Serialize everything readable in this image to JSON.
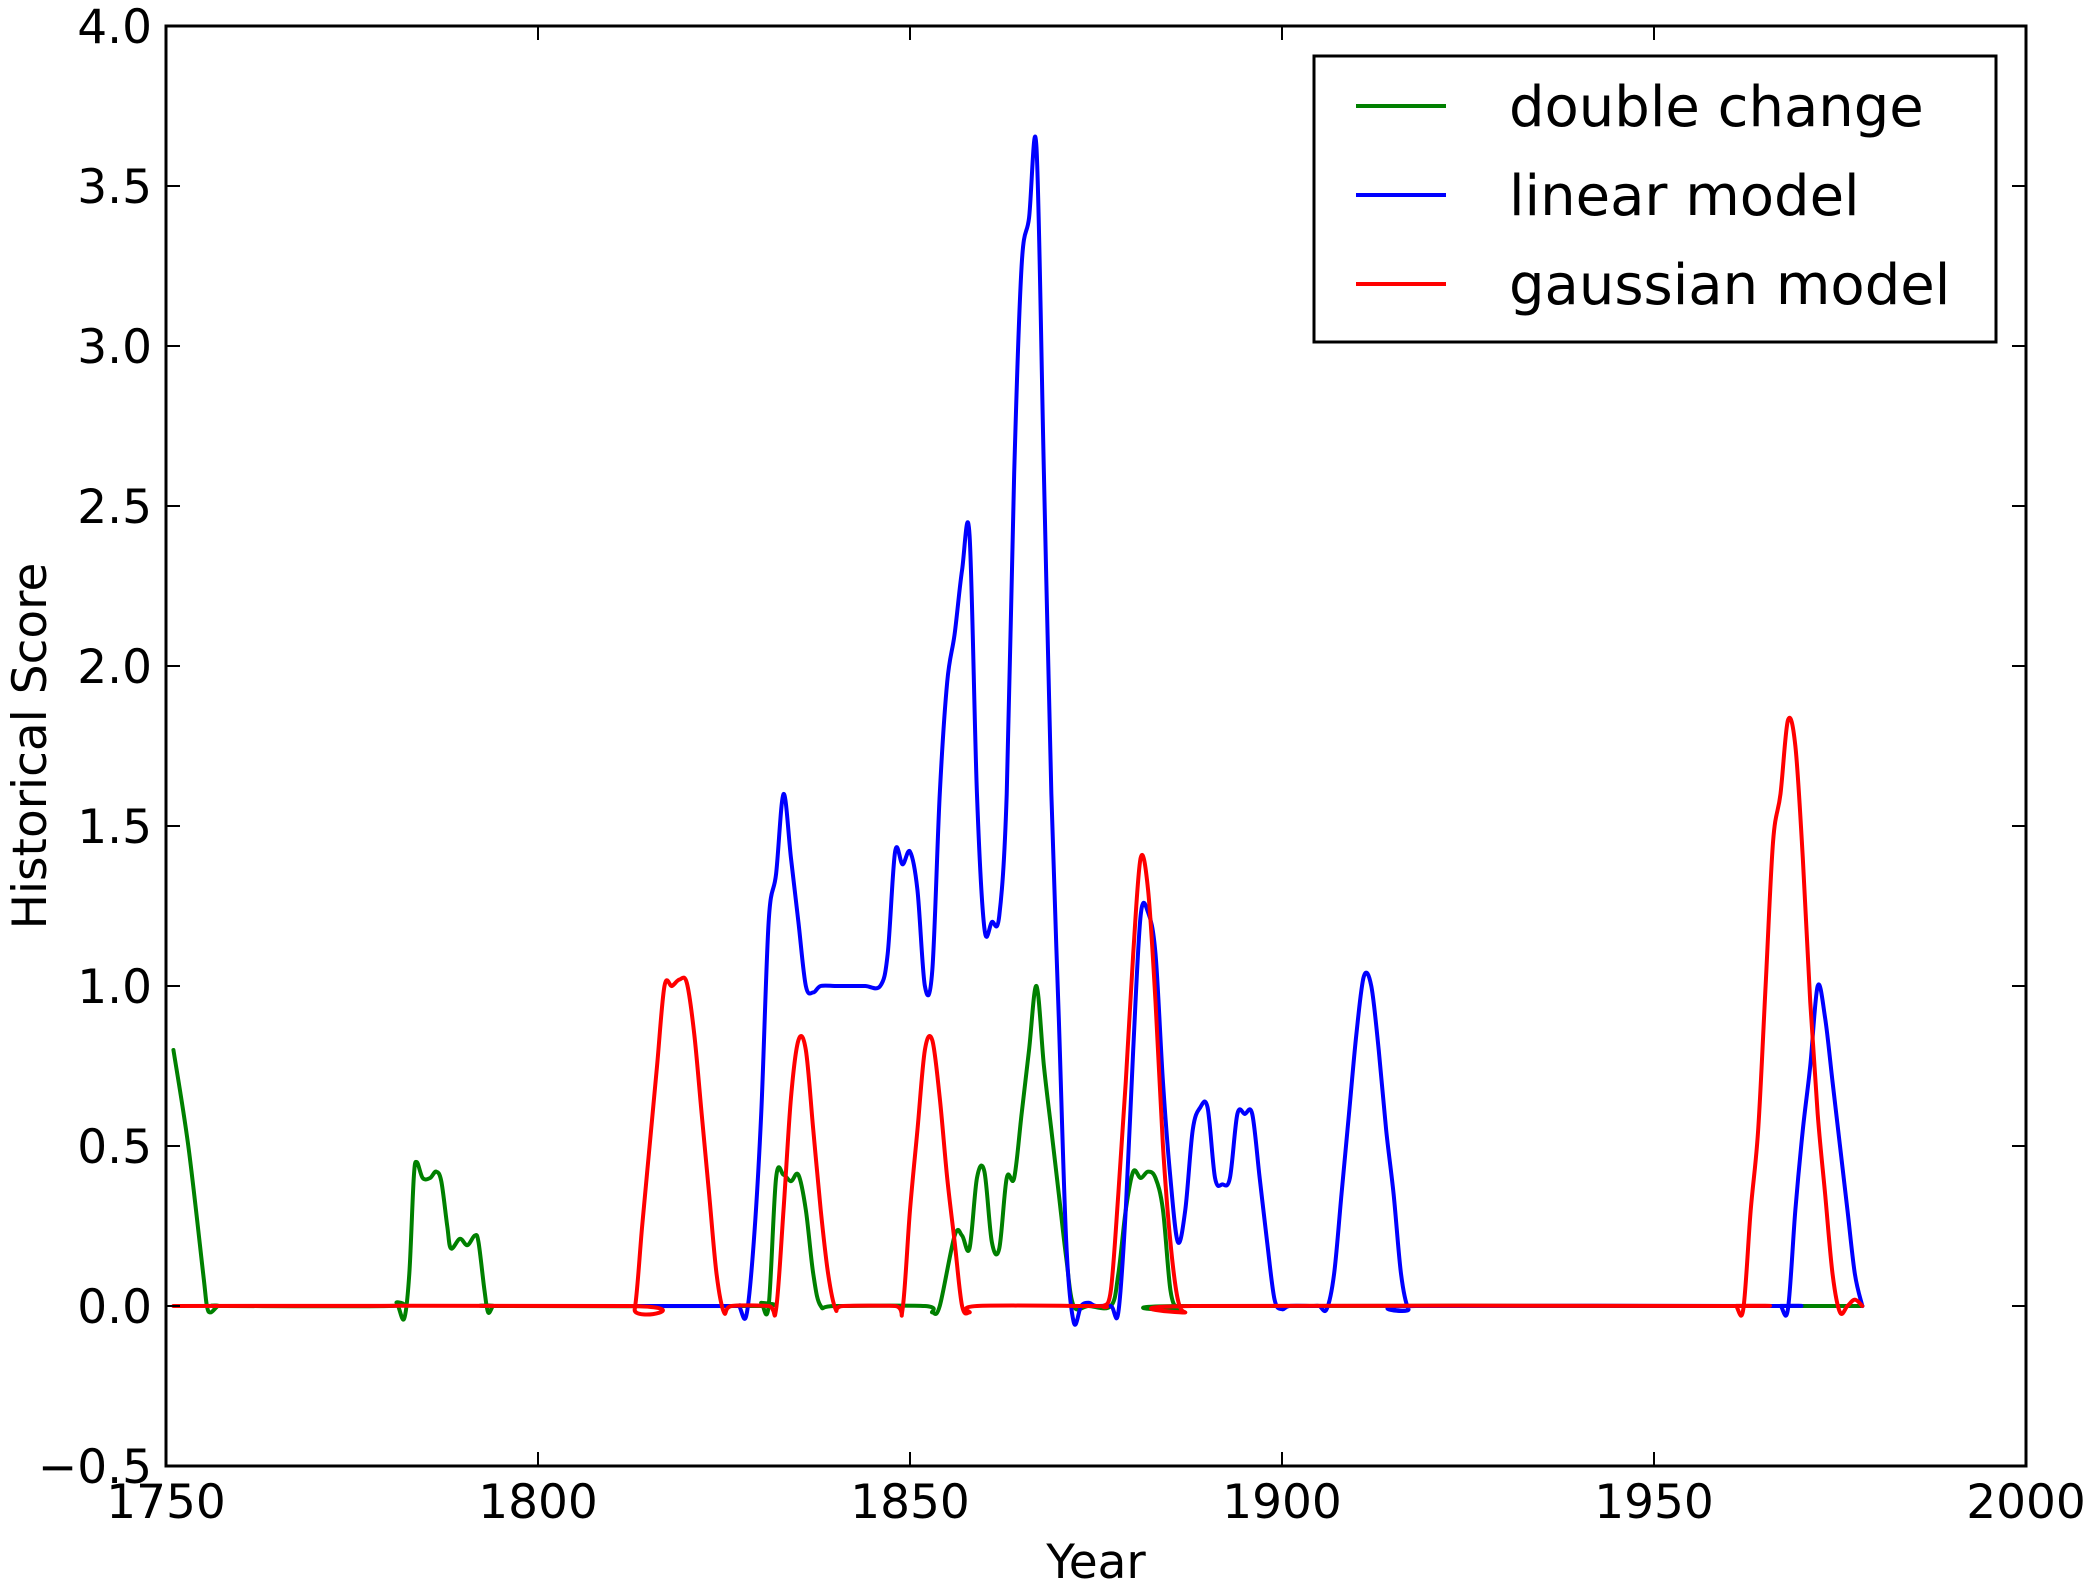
{
  "chart_data": {
    "type": "line",
    "title": "",
    "xlabel": "Year",
    "ylabel": "Historical Score",
    "xlim": [
      1750,
      2000
    ],
    "ylim": [
      -0.5,
      4.0
    ],
    "xticks": [
      1750,
      1800,
      1850,
      1900,
      1950,
      2000
    ],
    "yticks": [
      -0.5,
      0.0,
      0.5,
      1.0,
      1.5,
      2.0,
      2.5,
      3.0,
      3.5,
      4.0
    ],
    "xtick_labels": [
      "1750",
      "1800",
      "1850",
      "1900",
      "1950",
      "2000"
    ],
    "ytick_labels": [
      "−0.5",
      "0.0",
      "0.5",
      "1.0",
      "1.5",
      "2.0",
      "2.5",
      "3.0",
      "3.5",
      "4.0"
    ],
    "grid": false,
    "legend_position": "top-right",
    "series": [
      {
        "name": "double change",
        "color": "#008000",
        "points": [
          [
            1751,
            0.8
          ],
          [
            1753,
            0.5
          ],
          [
            1755,
            0.1
          ],
          [
            1755.5,
            0.0
          ],
          [
            1756,
            -0.02
          ],
          [
            1757,
            0.0
          ],
          [
            1758,
            0.0
          ],
          [
            1780,
            0.0
          ],
          [
            1781,
            0.01
          ],
          [
            1782,
            -0.04
          ],
          [
            1782.7,
            0.1
          ],
          [
            1783.3,
            0.4
          ],
          [
            1783.7,
            0.45
          ],
          [
            1784.5,
            0.4
          ],
          [
            1785.5,
            0.4
          ],
          [
            1786.3,
            0.42
          ],
          [
            1787,
            0.39
          ],
          [
            1787.8,
            0.25
          ],
          [
            1788.3,
            0.18
          ],
          [
            1789.5,
            0.21
          ],
          [
            1790.5,
            0.19
          ],
          [
            1791.5,
            0.22
          ],
          [
            1792,
            0.2
          ],
          [
            1792.8,
            0.05
          ],
          [
            1793.3,
            -0.02
          ],
          [
            1794,
            0.0
          ],
          [
            1795,
            0.0
          ],
          [
            1829,
            0.0
          ],
          [
            1830,
            0.01
          ],
          [
            1831,
            0.0
          ],
          [
            1832,
            0.4
          ],
          [
            1833,
            0.41
          ],
          [
            1834,
            0.39
          ],
          [
            1835,
            0.41
          ],
          [
            1836,
            0.3
          ],
          [
            1837,
            0.1
          ],
          [
            1838,
            0.0
          ],
          [
            1840,
            0.0
          ],
          [
            1852,
            0.0
          ],
          [
            1853,
            -0.02
          ],
          [
            1854,
            0.0
          ],
          [
            1856,
            0.22
          ],
          [
            1857,
            0.22
          ],
          [
            1858,
            0.18
          ],
          [
            1859,
            0.4
          ],
          [
            1860,
            0.42
          ],
          [
            1861,
            0.2
          ],
          [
            1862,
            0.18
          ],
          [
            1863,
            0.4
          ],
          [
            1864,
            0.4
          ],
          [
            1865,
            0.6
          ],
          [
            1866,
            0.8
          ],
          [
            1867,
            1.0
          ],
          [
            1868,
            0.75
          ],
          [
            1869,
            0.55
          ],
          [
            1870,
            0.35
          ],
          [
            1871,
            0.15
          ],
          [
            1872,
            0.0
          ],
          [
            1874,
            0.0
          ],
          [
            1877,
            0.0
          ],
          [
            1878,
            0.1
          ],
          [
            1879,
            0.3
          ],
          [
            1880,
            0.42
          ],
          [
            1881,
            0.4
          ],
          [
            1882,
            0.42
          ],
          [
            1883,
            0.4
          ],
          [
            1884,
            0.3
          ],
          [
            1885,
            0.05
          ],
          [
            1886,
            -0.01
          ],
          [
            1887,
            0.0
          ],
          [
            1960,
            0.0
          ],
          [
            1978,
            0.0
          ]
        ]
      },
      {
        "name": "linear model",
        "color": "#0000ff",
        "points": [
          [
            1813,
            0.0
          ],
          [
            1826,
            0.0
          ],
          [
            1827,
            0.0
          ],
          [
            1828,
            -0.03
          ],
          [
            1829,
            0.2
          ],
          [
            1830,
            0.6
          ],
          [
            1831,
            1.2
          ],
          [
            1832,
            1.35
          ],
          [
            1833,
            1.6
          ],
          [
            1834,
            1.4
          ],
          [
            1835,
            1.2
          ],
          [
            1836,
            1.0
          ],
          [
            1837,
            0.98
          ],
          [
            1838,
            1.0
          ],
          [
            1840,
            1.0
          ],
          [
            1842,
            1.0
          ],
          [
            1844,
            1.0
          ],
          [
            1846,
            1.0
          ],
          [
            1847,
            1.1
          ],
          [
            1848,
            1.42
          ],
          [
            1849,
            1.38
          ],
          [
            1850,
            1.42
          ],
          [
            1851,
            1.3
          ],
          [
            1852,
            1.0
          ],
          [
            1853,
            1.05
          ],
          [
            1854,
            1.6
          ],
          [
            1855,
            1.95
          ],
          [
            1856,
            2.1
          ],
          [
            1857,
            2.3
          ],
          [
            1858,
            2.41
          ],
          [
            1859,
            1.6
          ],
          [
            1860,
            1.18
          ],
          [
            1861,
            1.2
          ],
          [
            1862,
            1.22
          ],
          [
            1863,
            1.6
          ],
          [
            1864,
            2.6
          ],
          [
            1865,
            3.25
          ],
          [
            1866,
            3.4
          ],
          [
            1867,
            3.62
          ],
          [
            1868,
            2.6
          ],
          [
            1869,
            1.6
          ],
          [
            1870,
            0.9
          ],
          [
            1871,
            0.2
          ],
          [
            1872,
            -0.05
          ],
          [
            1873,
            0.0
          ],
          [
            1874,
            0.01
          ],
          [
            1875,
            0.0
          ],
          [
            1877,
            0.0
          ],
          [
            1878,
            -0.02
          ],
          [
            1879,
            0.3
          ],
          [
            1880,
            0.8
          ],
          [
            1881,
            1.22
          ],
          [
            1882,
            1.23
          ],
          [
            1883,
            1.1
          ],
          [
            1884,
            0.7
          ],
          [
            1885,
            0.4
          ],
          [
            1886,
            0.2
          ],
          [
            1887,
            0.3
          ],
          [
            1888,
            0.55
          ],
          [
            1889,
            0.62
          ],
          [
            1890,
            0.62
          ],
          [
            1891,
            0.4
          ],
          [
            1892,
            0.38
          ],
          [
            1893,
            0.4
          ],
          [
            1894,
            0.6
          ],
          [
            1895,
            0.6
          ],
          [
            1896,
            0.6
          ],
          [
            1897,
            0.4
          ],
          [
            1898,
            0.2
          ],
          [
            1899,
            0.02
          ],
          [
            1900,
            -0.01
          ],
          [
            1901,
            0.0
          ],
          [
            1904,
            0.0
          ],
          [
            1905,
            0.0
          ],
          [
            1906,
            -0.01
          ],
          [
            1907,
            0.1
          ],
          [
            1908,
            0.35
          ],
          [
            1909,
            0.6
          ],
          [
            1910,
            0.85
          ],
          [
            1911,
            1.03
          ],
          [
            1912,
            1.0
          ],
          [
            1913,
            0.8
          ],
          [
            1914,
            0.55
          ],
          [
            1915,
            0.35
          ],
          [
            1916,
            0.1
          ],
          [
            1917,
            -0.01
          ],
          [
            1918,
            0.0
          ],
          [
            1966,
            0.0
          ],
          [
            1967,
            0.0
          ],
          [
            1968,
            -0.01
          ],
          [
            1969,
            0.3
          ],
          [
            1970,
            0.55
          ],
          [
            1971,
            0.75
          ],
          [
            1972,
            1.0
          ],
          [
            1973,
            0.9
          ],
          [
            1974,
            0.7
          ],
          [
            1975,
            0.5
          ],
          [
            1976,
            0.3
          ],
          [
            1977,
            0.1
          ],
          [
            1978,
            0.0
          ]
        ]
      },
      {
        "name": "gaussian model",
        "color": "#ff0000",
        "points": [
          [
            1751,
            0.0
          ],
          [
            1812,
            0.0
          ],
          [
            1813,
            -0.01
          ],
          [
            1814,
            0.25
          ],
          [
            1815,
            0.5
          ],
          [
            1816,
            0.75
          ],
          [
            1817,
            1.0
          ],
          [
            1818,
            1.0
          ],
          [
            1819,
            1.02
          ],
          [
            1820,
            1.01
          ],
          [
            1821,
            0.85
          ],
          [
            1822,
            0.6
          ],
          [
            1823,
            0.35
          ],
          [
            1824,
            0.1
          ],
          [
            1825,
            -0.02
          ],
          [
            1826,
            0.0
          ],
          [
            1831,
            0.0
          ],
          [
            1832,
            -0.01
          ],
          [
            1833,
            0.3
          ],
          [
            1834,
            0.65
          ],
          [
            1835,
            0.83
          ],
          [
            1836,
            0.8
          ],
          [
            1837,
            0.55
          ],
          [
            1838,
            0.3
          ],
          [
            1839,
            0.1
          ],
          [
            1840,
            -0.01
          ],
          [
            1841,
            0.0
          ],
          [
            1848,
            0.0
          ],
          [
            1849,
            -0.01
          ],
          [
            1850,
            0.3
          ],
          [
            1851,
            0.55
          ],
          [
            1852,
            0.8
          ],
          [
            1853,
            0.83
          ],
          [
            1854,
            0.65
          ],
          [
            1855,
            0.4
          ],
          [
            1856,
            0.2
          ],
          [
            1857,
            0.0
          ],
          [
            1858,
            -0.02
          ],
          [
            1859,
            0.0
          ],
          [
            1875,
            0.0
          ],
          [
            1876,
            0.0
          ],
          [
            1877,
            0.05
          ],
          [
            1878,
            0.35
          ],
          [
            1879,
            0.7
          ],
          [
            1880,
            1.1
          ],
          [
            1881,
            1.4
          ],
          [
            1882,
            1.3
          ],
          [
            1883,
            0.95
          ],
          [
            1884,
            0.5
          ],
          [
            1885,
            0.2
          ],
          [
            1886,
            0.02
          ],
          [
            1887,
            -0.02
          ],
          [
            1888,
            0.0
          ],
          [
            1960,
            0.0
          ],
          [
            1961,
            0.0
          ],
          [
            1962,
            -0.01
          ],
          [
            1963,
            0.3
          ],
          [
            1964,
            0.55
          ],
          [
            1965,
            1.0
          ],
          [
            1966,
            1.45
          ],
          [
            1967,
            1.6
          ],
          [
            1968,
            1.83
          ],
          [
            1969,
            1.75
          ],
          [
            1970,
            1.4
          ],
          [
            1971,
            0.95
          ],
          [
            1972,
            0.6
          ],
          [
            1973,
            0.35
          ],
          [
            1974,
            0.1
          ],
          [
            1975,
            -0.02
          ],
          [
            1976,
            0.0
          ],
          [
            1977,
            0.02
          ],
          [
            1978,
            0.0
          ]
        ]
      }
    ]
  }
}
